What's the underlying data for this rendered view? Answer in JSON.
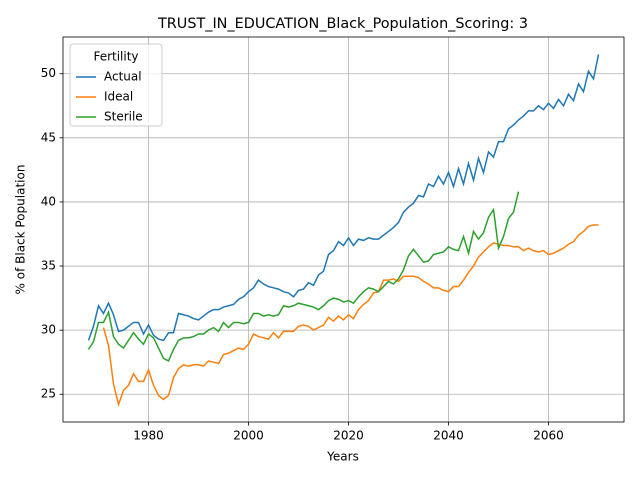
{
  "chart_data": {
    "type": "line",
    "title": "TRUST_IN_EDUCATION_Black_Population_Scoring: 3",
    "x_label": "Years",
    "y_label": "% of Black Population",
    "x": [
      1968,
      1969,
      1970,
      1971,
      1972,
      1973,
      1974,
      1975,
      1976,
      1977,
      1978,
      1979,
      1980,
      1981,
      1982,
      1983,
      1984,
      1985,
      1986,
      1987,
      1988,
      1989,
      1990,
      1991,
      1992,
      1993,
      1994,
      1995,
      1996,
      1997,
      1998,
      1999,
      2000,
      2001,
      2002,
      2003,
      2004,
      2005,
      2006,
      2007,
      2008,
      2009,
      2010,
      2011,
      2012,
      2013,
      2014,
      2015,
      2016,
      2017,
      2018,
      2019,
      2020,
      2021,
      2022,
      2023,
      2024,
      2025,
      2026,
      2027,
      2028,
      2029,
      2030,
      2031,
      2032,
      2033,
      2034,
      2035,
      2036,
      2037,
      2038,
      2039,
      2040,
      2041,
      2042,
      2043,
      2044,
      2045,
      2046,
      2047,
      2048,
      2049,
      2050,
      2051,
      2052,
      2053,
      2054,
      2055,
      2056,
      2057,
      2058,
      2059,
      2060,
      2061,
      2062,
      2063,
      2064,
      2065,
      2066,
      2067,
      2068,
      2069,
      2070
    ],
    "series": [
      {
        "name": "Actual",
        "color": "#1f77b4",
        "values": [
          29.2,
          30.3,
          31.9,
          31.3,
          32.1,
          31.2,
          29.9,
          30.0,
          30.3,
          30.6,
          30.6,
          29.7,
          30.4,
          29.6,
          29.3,
          29.2,
          29.8,
          29.8,
          31.3,
          31.2,
          31.1,
          30.9,
          30.8,
          31.1,
          31.4,
          31.6,
          31.6,
          31.8,
          31.9,
          32.0,
          32.4,
          32.6,
          33.0,
          33.3,
          33.9,
          33.6,
          33.4,
          33.3,
          33.2,
          33.0,
          32.9,
          32.6,
          33.1,
          33.2,
          33.7,
          33.5,
          34.3,
          34.6,
          35.9,
          36.2,
          36.9,
          36.6,
          37.2,
          36.6,
          37.1,
          37.0,
          37.2,
          37.1,
          37.1,
          37.4,
          37.7,
          38.0,
          38.4,
          39.2,
          39.6,
          39.9,
          40.5,
          40.4,
          41.4,
          41.2,
          42.0,
          41.4,
          42.3,
          41.2,
          42.6,
          41.4,
          43.0,
          41.7,
          43.4,
          42.3,
          43.9,
          43.5,
          44.7,
          44.7,
          45.7,
          46.0,
          46.4,
          46.7,
          47.1,
          47.1,
          47.5,
          47.2,
          47.7,
          47.3,
          48.0,
          47.5,
          48.4,
          47.9,
          49.2,
          48.6,
          50.2,
          49.6,
          51.5
        ]
      },
      {
        "name": "Ideal",
        "color": "#ff7f0e",
        "values": [
          null,
          null,
          null,
          30.2,
          28.8,
          25.8,
          24.2,
          25.3,
          25.7,
          26.6,
          26.0,
          26.0,
          26.9,
          25.7,
          24.9,
          24.6,
          24.9,
          26.3,
          27.0,
          27.3,
          27.2,
          27.3,
          27.3,
          27.2,
          27.6,
          27.5,
          27.4,
          28.1,
          28.2,
          28.4,
          28.6,
          28.5,
          28.9,
          29.7,
          29.5,
          29.4,
          29.3,
          29.8,
          29.4,
          29.9,
          29.9,
          29.9,
          30.3,
          30.4,
          30.3,
          30.0,
          30.2,
          30.4,
          31.0,
          30.7,
          31.1,
          30.8,
          31.2,
          30.9,
          31.6,
          32.0,
          32.3,
          32.9,
          33.0,
          33.9,
          33.9,
          34.0,
          33.8,
          34.2,
          34.2,
          34.2,
          34.1,
          33.8,
          33.6,
          33.3,
          33.3,
          33.1,
          33.0,
          33.4,
          33.4,
          33.9,
          34.5,
          35.0,
          35.7,
          36.1,
          36.5,
          36.8,
          36.7,
          36.6,
          36.6,
          36.5,
          36.5,
          36.2,
          36.4,
          36.2,
          36.1,
          36.2,
          35.9,
          36.0,
          36.2,
          36.4,
          36.7,
          36.9,
          37.4,
          37.7,
          38.1,
          38.2,
          38.2
        ]
      },
      {
        "name": "Sterile",
        "color": "#2ca02c",
        "values": [
          28.5,
          29.1,
          30.6,
          30.6,
          31.4,
          29.5,
          28.9,
          28.6,
          29.2,
          29.8,
          29.3,
          28.9,
          29.7,
          29.4,
          28.6,
          27.8,
          27.6,
          28.5,
          29.2,
          29.4,
          29.4,
          29.5,
          29.7,
          29.7,
          30.0,
          30.2,
          29.9,
          30.6,
          30.2,
          30.6,
          30.6,
          30.5,
          30.6,
          31.3,
          31.3,
          31.1,
          31.2,
          31.1,
          31.2,
          31.9,
          31.8,
          31.9,
          32.1,
          32.0,
          31.9,
          31.8,
          31.6,
          31.9,
          32.3,
          32.5,
          32.4,
          32.2,
          32.3,
          32.1,
          32.6,
          33.0,
          33.3,
          33.2,
          33.0,
          33.4,
          33.8,
          33.6,
          34.0,
          34.7,
          35.8,
          36.3,
          35.8,
          35.3,
          35.4,
          35.9,
          36.0,
          36.1,
          36.5,
          36.3,
          36.2,
          37.3,
          36.0,
          37.7,
          37.1,
          37.6,
          38.8,
          39.4,
          36.4,
          37.3,
          38.7,
          39.2,
          40.8,
          null,
          null,
          null,
          null,
          null,
          null,
          null,
          null,
          null,
          null,
          null,
          null,
          null,
          null,
          null,
          null
        ]
      }
    ],
    "xlim": [
      1962.9,
      2075.1
    ],
    "ylim": [
      22.835,
      52.865
    ],
    "xticks": [
      1980,
      2000,
      2020,
      2040,
      2060
    ],
    "yticks": [
      25,
      30,
      35,
      40,
      45,
      50
    ],
    "grid": true,
    "legend_title": "Fertility",
    "legend_position": "upper left"
  }
}
